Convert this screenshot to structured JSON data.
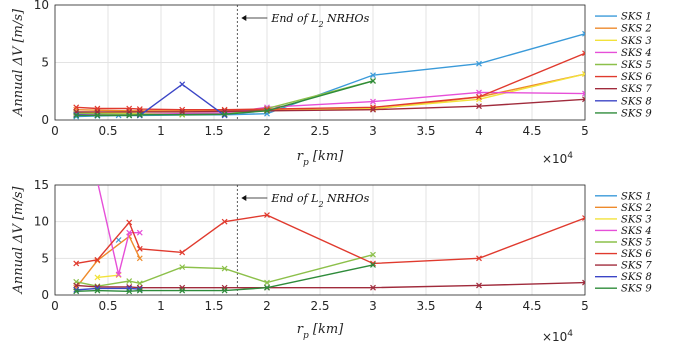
{
  "chart_data": [
    {
      "type": "line",
      "xlabel": "r_p [km]",
      "ylabel": "Annual ΔV [m/s]",
      "xlim": [
        0,
        5
      ],
      "ylim": [
        0,
        10
      ],
      "x_ticks": [
        "0",
        "0.5",
        "1",
        "1.5",
        "2",
        "2.5",
        "3",
        "3.5",
        "4",
        "4.5",
        "5"
      ],
      "y_ticks": [
        "0",
        "5",
        "10"
      ],
      "x_multiplier": "×10^4",
      "grid": true,
      "legend_position": "right",
      "annotation": {
        "text": "End of L2 NRHOs",
        "x": 1.72
      },
      "series": [
        {
          "name": "SKS 1",
          "color": "#3a9ad9",
          "x": [
            0.2,
            0.4,
            0.6,
            0.8,
            1.6,
            2.0,
            3.0,
            4.0,
            5.0
          ],
          "y": [
            0.3,
            0.35,
            0.4,
            0.4,
            0.45,
            0.55,
            3.9,
            4.9,
            7.5
          ]
        },
        {
          "name": "SKS 2",
          "color": "#ee8a2b",
          "x": [
            0.2,
            0.4,
            0.7,
            0.8,
            1.6,
            2.0,
            3.0,
            4.0,
            5.0
          ],
          "y": [
            0.9,
            0.85,
            0.8,
            0.8,
            0.8,
            0.85,
            0.95,
            2.0,
            4.0
          ]
        },
        {
          "name": "SKS 3",
          "color": "#f2e23a",
          "x": [
            0.2,
            0.4,
            0.7,
            0.8,
            1.2,
            1.6,
            2.0,
            3.0,
            4.0,
            5.0
          ],
          "y": [
            0.6,
            0.6,
            0.6,
            0.55,
            0.5,
            0.6,
            0.8,
            1.0,
            1.8,
            4.0
          ]
        },
        {
          "name": "SKS 4",
          "color": "#e64fd8",
          "x": [
            0.2,
            0.4,
            0.7,
            0.8,
            1.6,
            2.0,
            3.0,
            4.0,
            5.0
          ],
          "y": [
            0.5,
            0.5,
            0.5,
            0.5,
            0.6,
            1.1,
            1.6,
            2.4,
            2.3
          ]
        },
        {
          "name": "SKS 5",
          "color": "#8cc04a",
          "x": [
            0.2,
            0.4,
            0.7,
            0.8,
            1.2,
            1.6,
            2.0,
            3.0
          ],
          "y": [
            0.6,
            0.55,
            0.5,
            0.5,
            0.45,
            0.5,
            1.0,
            3.4
          ]
        },
        {
          "name": "SKS 6",
          "color": "#e03a2e",
          "x": [
            0.2,
            0.4,
            0.7,
            0.8,
            1.2,
            1.6,
            2.0,
            3.0,
            4.0,
            5.0
          ],
          "y": [
            1.1,
            1.0,
            1.0,
            0.95,
            0.9,
            0.9,
            0.95,
            1.1,
            2.0,
            5.8
          ]
        },
        {
          "name": "SKS 7",
          "color": "#a02b3c",
          "x": [
            0.2,
            0.4,
            0.7,
            0.8,
            1.2,
            1.6,
            2.0,
            3.0,
            4.0,
            5.0
          ],
          "y": [
            0.7,
            0.7,
            0.7,
            0.7,
            0.7,
            0.75,
            0.8,
            0.9,
            1.2,
            1.8
          ]
        },
        {
          "name": "SKS 8",
          "color": "#3b45c6",
          "x": [
            0.2,
            0.4,
            0.7,
            0.8,
            1.2,
            1.6
          ],
          "y": [
            0.45,
            0.4,
            0.4,
            0.4,
            3.1,
            0.4
          ]
        },
        {
          "name": "SKS 9",
          "color": "#2e8b3a",
          "x": [
            0.2,
            0.4,
            0.7,
            0.8,
            1.6,
            2.0,
            3.0
          ],
          "y": [
            0.4,
            0.4,
            0.4,
            0.45,
            0.5,
            0.8,
            3.4
          ]
        }
      ]
    },
    {
      "type": "line",
      "xlabel": "r_p [km]",
      "ylabel": "Annual ΔV [m/s]",
      "xlim": [
        0,
        5
      ],
      "ylim": [
        0,
        15
      ],
      "x_ticks": [
        "0",
        "0.5",
        "1",
        "1.5",
        "2",
        "2.5",
        "3",
        "3.5",
        "4",
        "4.5",
        "5"
      ],
      "y_ticks": [
        "0",
        "5",
        "10",
        "15"
      ],
      "x_multiplier": "×10^4",
      "grid": true,
      "legend_position": "right",
      "annotation": {
        "text": "End of L2 NRHOs",
        "x": 1.72
      },
      "series": [
        {
          "name": "SKS 1",
          "color": "#3a9ad9",
          "x": [
            0.6
          ],
          "y": [
            7.5
          ]
        },
        {
          "name": "SKS 2",
          "color": "#ee8a2b",
          "x": [
            0.2,
            0.4,
            0.7,
            0.8
          ],
          "y": [
            1.0,
            4.7,
            8.0,
            5.0
          ]
        },
        {
          "name": "SKS 3",
          "color": "#f2e23a",
          "x": [
            0.4,
            0.6
          ],
          "y": [
            2.4,
            2.7
          ]
        },
        {
          "name": "SKS 4",
          "color": "#e64fd8",
          "x": [
            0.4,
            0.6,
            0.7,
            0.8
          ],
          "y": [
            15.5,
            2.8,
            8.5,
            8.5
          ]
        },
        {
          "name": "SKS 5",
          "color": "#8cc04a",
          "x": [
            0.2,
            0.4,
            0.7,
            0.8,
            1.2,
            1.6,
            2.0,
            3.0
          ],
          "y": [
            1.8,
            1.2,
            1.9,
            1.6,
            3.8,
            3.6,
            1.7,
            5.5
          ]
        },
        {
          "name": "SKS 6",
          "color": "#e03a2e",
          "x": [
            0.2,
            0.4,
            0.7,
            0.8,
            1.2,
            1.6,
            2.0,
            3.0,
            4.0,
            5.0
          ],
          "y": [
            4.3,
            4.8,
            9.9,
            6.3,
            5.8,
            10.0,
            10.9,
            4.3,
            5.0,
            10.5
          ]
        },
        {
          "name": "SKS 7",
          "color": "#a02b3c",
          "x": [
            0.2,
            0.4,
            0.7,
            0.8,
            1.2,
            1.6,
            2.0,
            3.0,
            4.0,
            5.0
          ],
          "y": [
            1.3,
            1.1,
            1.1,
            1.0,
            1.0,
            1.0,
            1.0,
            1.0,
            1.3,
            1.7
          ]
        },
        {
          "name": "SKS 8",
          "color": "#3b45c6",
          "x": [
            0.2,
            0.4,
            0.7,
            0.8
          ],
          "y": [
            0.7,
            0.9,
            0.9,
            0.8
          ]
        },
        {
          "name": "SKS 9",
          "color": "#2e8b3a",
          "x": [
            0.2,
            0.4,
            0.7,
            0.8,
            1.2,
            1.6,
            2.0,
            3.0
          ],
          "y": [
            0.5,
            0.6,
            0.5,
            0.6,
            0.6,
            0.6,
            1.0,
            4.1
          ]
        }
      ]
    }
  ]
}
